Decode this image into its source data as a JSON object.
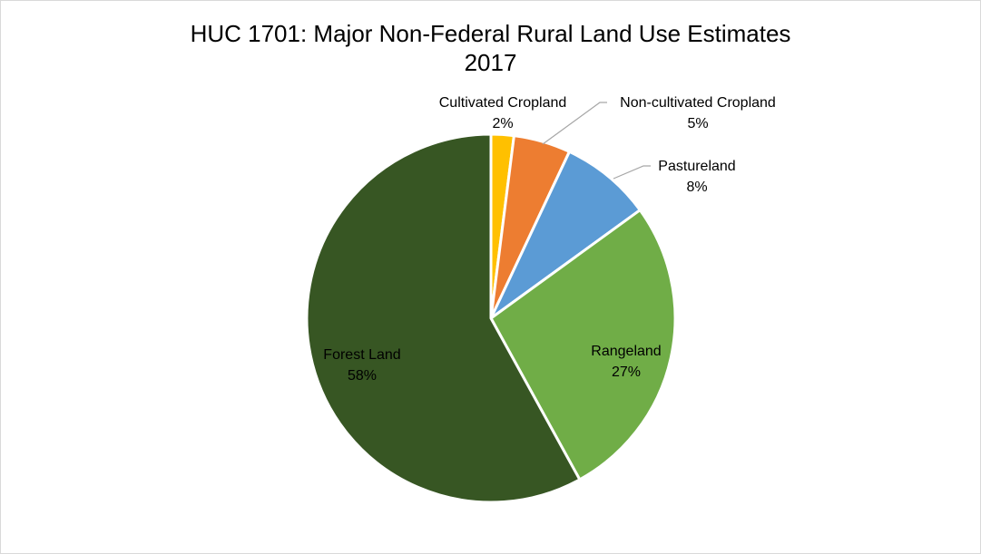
{
  "chart_data": {
    "type": "pie",
    "title": "HUC 1701: Major Non-Federal Rural Land Use Estimates",
    "subtitle": "2017",
    "categories": [
      "Cultivated Cropland",
      "Non-cultivated Cropland",
      "Pastureland",
      "Rangeland",
      "Forest Land"
    ],
    "values": [
      2,
      5,
      8,
      27,
      58
    ],
    "value_labels": [
      "2%",
      "5%",
      "8%",
      "27%",
      "58%"
    ],
    "colors": [
      "#ffc000",
      "#ed7d31",
      "#5b9bd5",
      "#70ad47",
      "#375623"
    ],
    "legend": "none",
    "data_labels": "category name and percentage"
  }
}
